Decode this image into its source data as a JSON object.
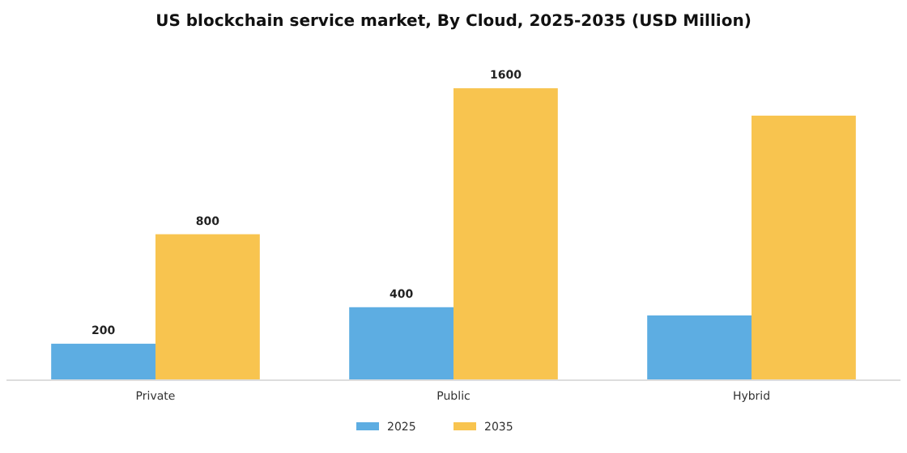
{
  "chart_data": {
    "type": "bar",
    "title": "US blockchain service market, By Cloud, 2025-2035 (USD Million)",
    "categories": [
      "Private",
      "Public",
      "Hybrid"
    ],
    "series": [
      {
        "name": "2025",
        "color": "#5dade2",
        "values": [
          200,
          400,
          355
        ],
        "value_labels": [
          "200",
          "400",
          null
        ]
      },
      {
        "name": "2035",
        "color": "#f8c44f",
        "values": [
          800,
          1600,
          1450
        ],
        "value_labels": [
          "800",
          "1600",
          null
        ]
      }
    ],
    "legend": "bottom"
  }
}
